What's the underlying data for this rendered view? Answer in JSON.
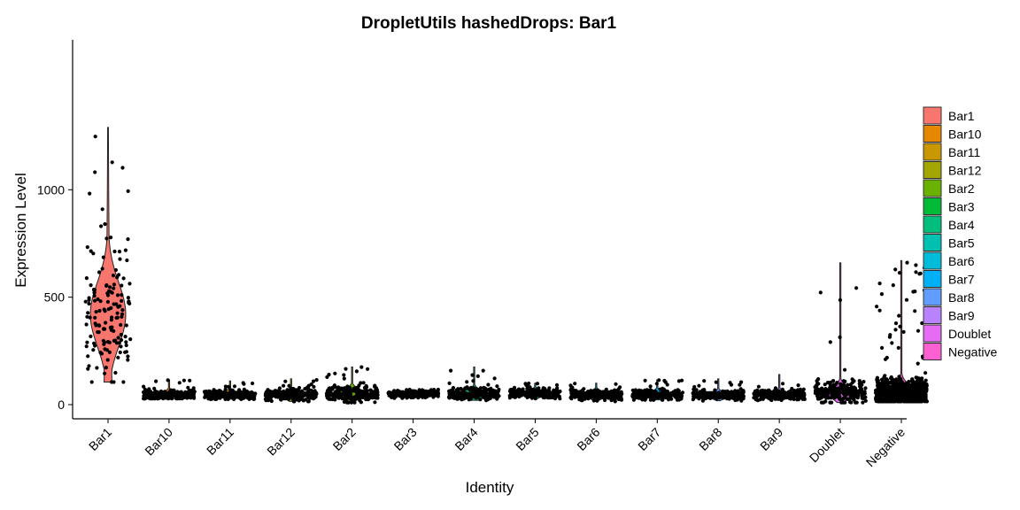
{
  "chart_data": {
    "type": "violin",
    "title": "DropletUtils hashedDrops: Bar1",
    "xlabel": "Identity",
    "ylabel": "Expression Level",
    "ylim": [
      -50,
      1350
    ],
    "yticks": [
      0,
      500,
      1000
    ],
    "grid": false,
    "legend_position": "right",
    "categories": [
      "Bar1",
      "Bar10",
      "Bar11",
      "Bar12",
      "Bar2",
      "Bar3",
      "Bar4",
      "Bar5",
      "Bar6",
      "Bar7",
      "Bar8",
      "Bar9",
      "Doublet",
      "Negative"
    ],
    "colors": [
      "#F8766D",
      "#E58700",
      "#C99800",
      "#A3A500",
      "#6BB100",
      "#00BA38",
      "#00BF7D",
      "#00C0AF",
      "#00BCD8",
      "#00B0F6",
      "#619CFF",
      "#B983FF",
      "#E76BF3",
      "#FD61D1"
    ],
    "series": [
      {
        "name": "Bar1",
        "min": 105,
        "max": 1290,
        "median": 420,
        "q1": 330,
        "q3": 530
      },
      {
        "name": "Bar10",
        "min": 28,
        "max": 115,
        "median": 45,
        "q1": 38,
        "q3": 55
      },
      {
        "name": "Bar11",
        "min": 25,
        "max": 110,
        "median": 45,
        "q1": 37,
        "q3": 54
      },
      {
        "name": "Bar12",
        "min": 15,
        "max": 120,
        "median": 45,
        "q1": 36,
        "q3": 56
      },
      {
        "name": "Bar2",
        "min": 10,
        "max": 175,
        "median": 50,
        "q1": 38,
        "q3": 65
      },
      {
        "name": "Bar3",
        "min": 30,
        "max": 70,
        "median": 50,
        "q1": 44,
        "q3": 56
      },
      {
        "name": "Bar4",
        "min": 20,
        "max": 175,
        "median": 48,
        "q1": 38,
        "q3": 62
      },
      {
        "name": "Bar5",
        "min": 28,
        "max": 100,
        "median": 52,
        "q1": 45,
        "q3": 62
      },
      {
        "name": "Bar6",
        "min": 15,
        "max": 100,
        "median": 45,
        "q1": 36,
        "q3": 55
      },
      {
        "name": "Bar7",
        "min": 22,
        "max": 115,
        "median": 45,
        "q1": 37,
        "q3": 55
      },
      {
        "name": "Bar8",
        "min": 18,
        "max": 120,
        "median": 43,
        "q1": 35,
        "q3": 52
      },
      {
        "name": "Bar9",
        "min": 20,
        "max": 140,
        "median": 45,
        "q1": 37,
        "q3": 55
      },
      {
        "name": "Doublet",
        "min": 10,
        "max": 660,
        "median": 55,
        "q1": 40,
        "q3": 75
      },
      {
        "name": "Negative",
        "min": 15,
        "max": 670,
        "median": 55,
        "q1": 38,
        "q3": 85
      }
    ]
  }
}
